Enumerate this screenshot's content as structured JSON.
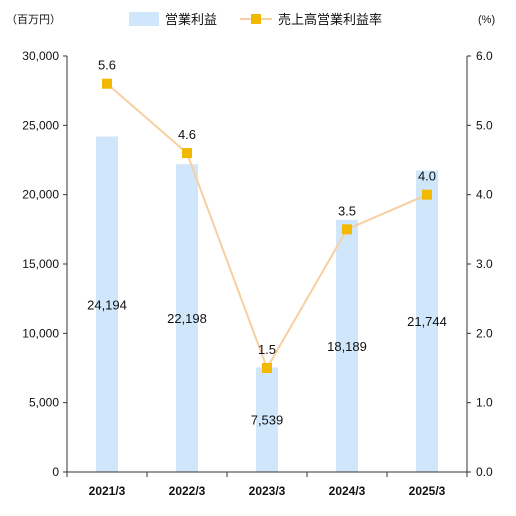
{
  "chart_data": {
    "type": "bar",
    "categories": [
      "2021/3",
      "2022/3",
      "2023/3",
      "2024/3",
      "2025/3"
    ],
    "series": [
      {
        "name": "営業利益",
        "type": "bar",
        "axis": "left",
        "values": [
          24194,
          22198,
          7539,
          18189,
          21744
        ],
        "labels": [
          "24,194",
          "22,198",
          "7,539",
          "18,189",
          "21,744"
        ],
        "color": "#cfe6fb"
      },
      {
        "name": "売上高営業利益率",
        "type": "line",
        "axis": "right",
        "values": [
          5.6,
          4.6,
          1.5,
          3.5,
          4.0
        ],
        "labels": [
          "5.6",
          "4.6",
          "1.5",
          "3.5",
          "4.0"
        ],
        "color": "#f3b900",
        "line_color": "#f7cfa0"
      }
    ],
    "y_left": {
      "unit": "（百万円）",
      "min": 0,
      "max": 30000,
      "ticks": [
        0,
        5000,
        10000,
        15000,
        20000,
        25000,
        30000
      ],
      "tick_labels": [
        "0",
        "5,000",
        "10,000",
        "15,000",
        "20,000",
        "25,000",
        "30,000"
      ]
    },
    "y_right": {
      "unit": "(%)",
      "min": 0,
      "max": 6,
      "ticks": [
        0,
        1,
        2,
        3,
        4,
        5,
        6
      ],
      "tick_labels": [
        "0.0",
        "1.0",
        "2.0",
        "3.0",
        "4.0",
        "5.0",
        "6.0"
      ]
    },
    "grid": false,
    "legend_position": "top-center"
  }
}
